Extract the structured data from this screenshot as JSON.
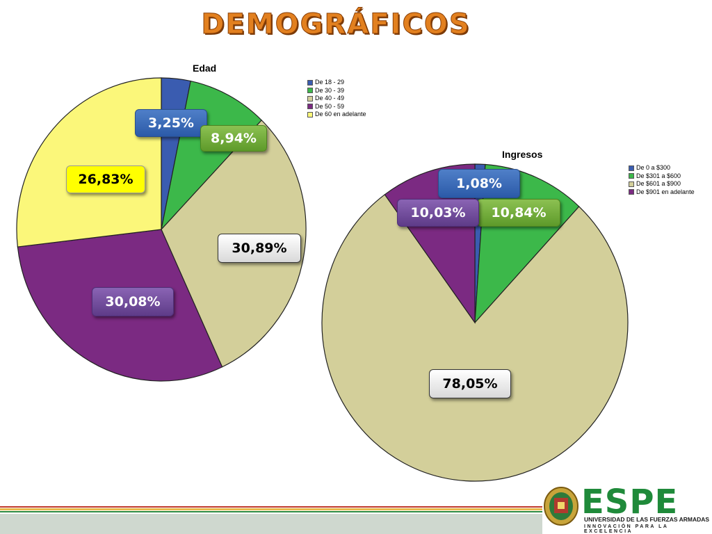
{
  "slide": {
    "title": "DEMOGRÁFICOS"
  },
  "chart_data": [
    {
      "type": "pie",
      "title": "Edad",
      "legend_position": "top-right",
      "categories": [
        "De 18 - 29",
        "De 30 - 39",
        "De 40 - 49",
        "De 50 - 59",
        "De 60 en adelante"
      ],
      "values": [
        3.25,
        8.94,
        30.89,
        30.08,
        26.83
      ],
      "labels": [
        "3,25%",
        "8,94%",
        "30,89%",
        "30,08%",
        "26,83%"
      ],
      "colors": [
        "#3a5cb0",
        "#3cb84a",
        "#d3cf9a",
        "#7b2a82",
        "#fbf77a"
      ]
    },
    {
      "type": "pie",
      "title": "Ingresos",
      "legend_position": "top-right",
      "categories": [
        "De 0 a $300",
        "De $301 a $600",
        "De $601 a $900",
        "De $901 en adelante"
      ],
      "values": [
        1.08,
        10.84,
        78.05,
        10.03
      ],
      "labels": [
        "1,08%",
        "10,84%",
        "78,05%",
        "10,03%"
      ],
      "colors": [
        "#3a5cb0",
        "#3cb84a",
        "#d3cf9a",
        "#7b2a82"
      ]
    }
  ],
  "footer": {
    "brand": "ESPE",
    "university": "UNIVERSIDAD DE LAS FUERZAS ARMADAS",
    "motto": "INNOVACIÓN PARA LA EXCELENCIA"
  }
}
